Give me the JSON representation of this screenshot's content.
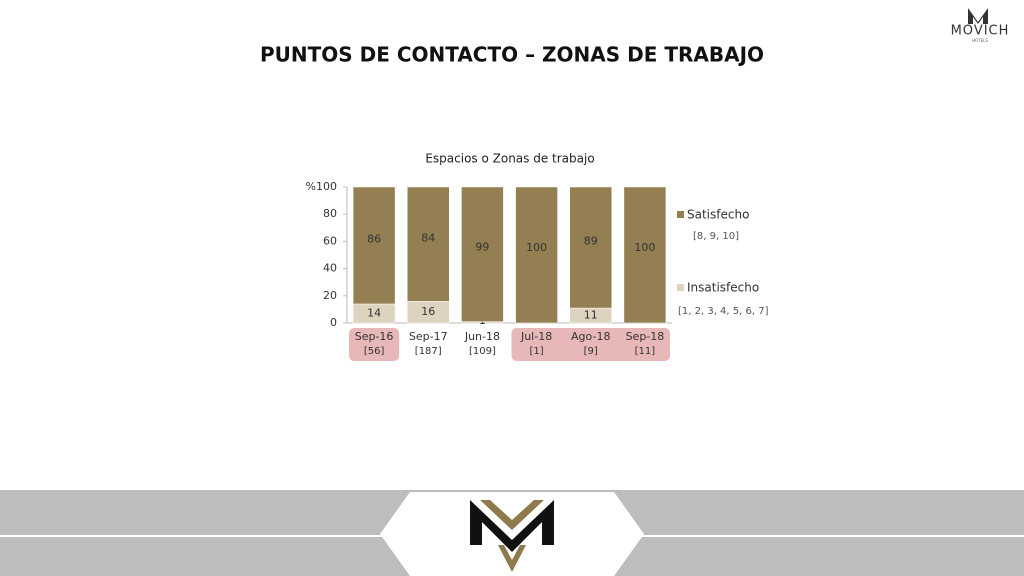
{
  "header": {
    "title": "PUNTOS DE CONTACTO – ZONAS DE TRABAJO",
    "logo": "MOVICH",
    "logo_sub": "HOTELS"
  },
  "chart_data": {
    "type": "stacked_bar",
    "title": "Espacios o Zonas de trabajo",
    "categories": [
      "Sep-16",
      "Sep-17",
      "Jun-18",
      "Jul-18",
      "Ago-18",
      "Sep-18"
    ],
    "sample_sizes": [
      "[56]",
      "[187]",
      "[109]",
      "[1]",
      "[9]",
      "[11]"
    ],
    "highlighted": [
      true,
      false,
      false,
      true,
      true,
      true
    ],
    "highlight_color": "#e8b7b8",
    "series": [
      {
        "name": "Insatisfecho",
        "scale": "[1, 2, 3, 4, 5, 6, 7]",
        "color": "#ddd3bf",
        "values": [
          14,
          16,
          1,
          0,
          11,
          0
        ]
      },
      {
        "name": "Satisfecho",
        "scale": "[8, 9, 10]",
        "color": "#947f53",
        "values": [
          86,
          84,
          99,
          100,
          89,
          100
        ]
      }
    ],
    "ylim": [
      0,
      100
    ],
    "yticks": [
      0,
      20,
      40,
      60,
      80,
      {
        "value": 100,
        "label": "%100"
      }
    ],
    "grid": false,
    "legend": "right"
  }
}
